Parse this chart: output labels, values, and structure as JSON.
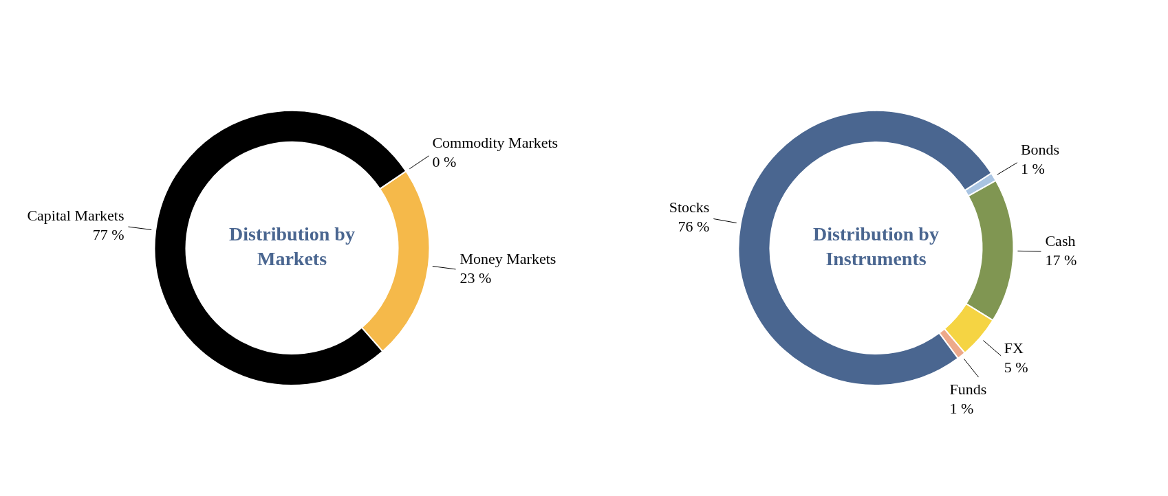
{
  "chart_data": [
    {
      "type": "donut",
      "title": "Distribution by Markets",
      "categories": [
        "Commodity Markets",
        "Money Markets",
        "Capital Markets"
      ],
      "values": [
        0,
        23,
        77
      ],
      "colors": [
        "#e0452a",
        "#f5b94a",
        "#000000"
      ],
      "value_labels": [
        "0 %",
        "23 %",
        "77 %"
      ]
    },
    {
      "type": "donut",
      "title": "Distribution by Instruments",
      "categories": [
        "Bonds",
        "Cash",
        "FX",
        "Funds",
        "Stocks"
      ],
      "values": [
        1,
        17,
        5,
        1,
        76
      ],
      "colors": [
        "#a9c4e2",
        "#809652",
        "#f5d443",
        "#eda98a",
        "#4a6690"
      ],
      "value_labels": [
        "1 %",
        "17 %",
        "5 %",
        "1 %",
        "76 %"
      ]
    }
  ]
}
